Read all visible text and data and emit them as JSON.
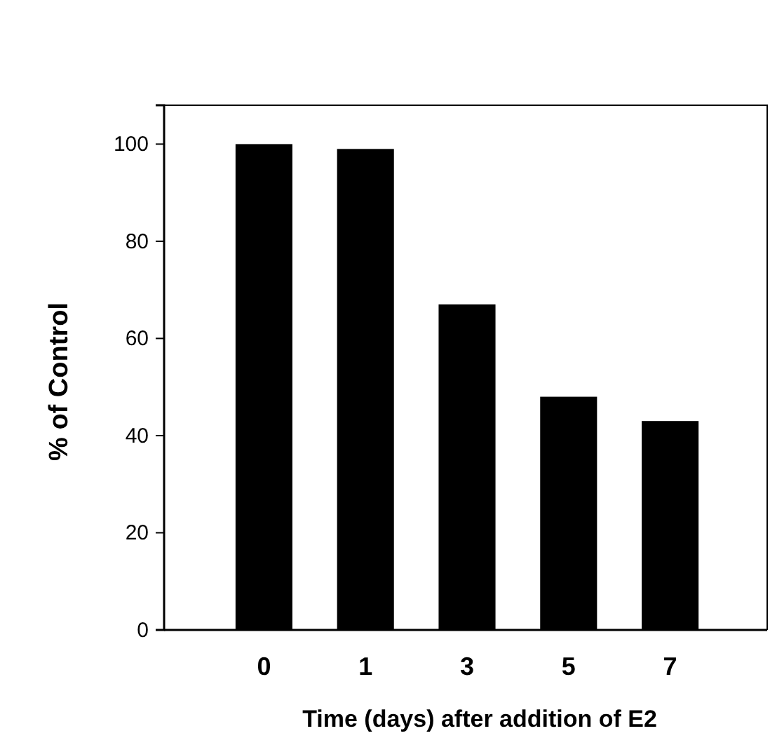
{
  "chart_data": {
    "type": "bar",
    "xlabel": "Time (days) after addition of E2",
    "ylabel": "% of Control",
    "categories": [
      "0",
      "1",
      "3",
      "5",
      "7"
    ],
    "values": [
      100,
      99,
      67,
      48,
      43
    ],
    "color": "#000000",
    "ylim": [
      0,
      108
    ],
    "yticks": [
      0,
      20,
      40,
      60,
      80,
      100
    ],
    "grid": false
  }
}
